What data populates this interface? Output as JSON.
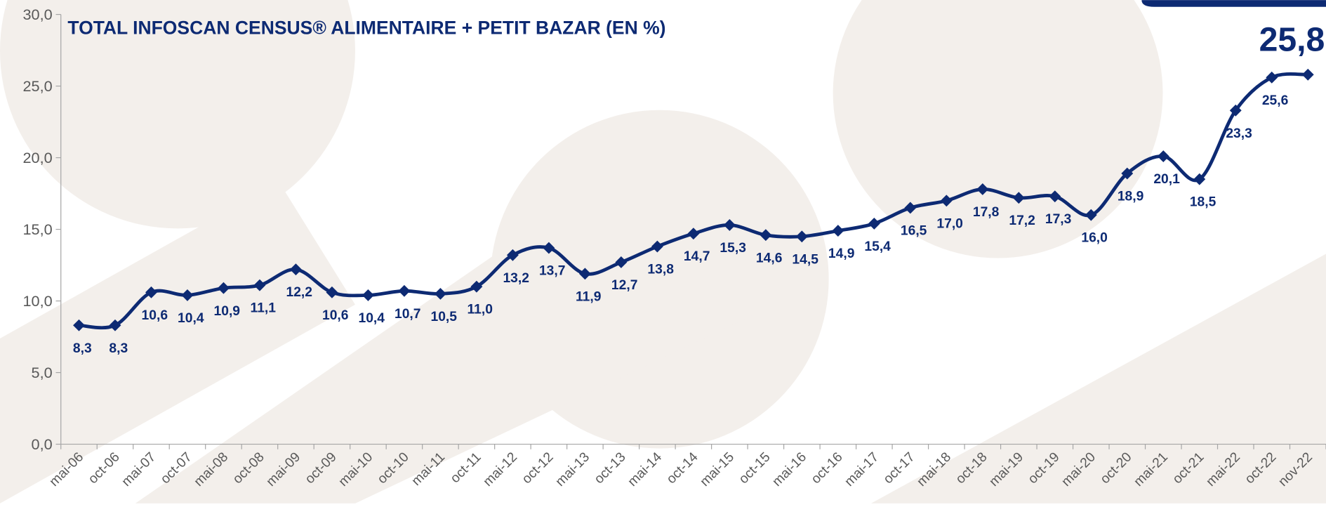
{
  "chart_data": {
    "type": "line",
    "title": "TOTAL INFOSCAN CENSUS® ALIMENTAIRE + PETIT BAZAR (EN %)",
    "categories": [
      "mai-06",
      "oct-06",
      "mai-07",
      "oct-07",
      "mai-08",
      "oct-08",
      "mai-09",
      "oct-09",
      "mai-10",
      "oct-10",
      "mai-11",
      "oct-11",
      "mai-12",
      "oct-12",
      "mai-13",
      "oct-13",
      "mai-14",
      "oct-14",
      "mai-15",
      "oct-15",
      "mai-16",
      "oct-16",
      "mai-17",
      "oct-17",
      "mai-18",
      "oct-18",
      "mai-19",
      "oct-19",
      "mai-20",
      "oct-20",
      "mai-21",
      "oct-21",
      "mai-22",
      "oct-22",
      "nov-22"
    ],
    "values": [
      8.3,
      8.3,
      10.6,
      10.4,
      10.9,
      11.1,
      12.2,
      10.6,
      10.4,
      10.7,
      10.5,
      11.0,
      13.2,
      13.7,
      11.9,
      12.7,
      13.8,
      14.7,
      15.3,
      14.6,
      14.5,
      14.9,
      15.4,
      16.5,
      17.0,
      17.8,
      17.2,
      17.3,
      16.0,
      18.9,
      20.1,
      18.5,
      23.3,
      25.6,
      25.8
    ],
    "value_labels": [
      "8,3",
      "8,3",
      "10,6",
      "10,4",
      "10,9",
      "11,1",
      "12,2",
      "10,6",
      "10,4",
      "10,7",
      "10,5",
      "11,0",
      "13,2",
      "13,7",
      "11,9",
      "12,7",
      "13,8",
      "14,7",
      "15,3",
      "14,6",
      "14,5",
      "14,9",
      "15,4",
      "16,5",
      "17,0",
      "17,8",
      "17,2",
      "17,3",
      "16,0",
      "18,9",
      "20,1",
      "18,5",
      "23,3",
      "25,6",
      "25,8"
    ],
    "color": "#0d2a73",
    "ylim": [
      0,
      30
    ],
    "yticks": [
      {
        "value": 0,
        "label": "0,0"
      },
      {
        "value": 5,
        "label": "5,0"
      },
      {
        "value": 10,
        "label": "10,0"
      },
      {
        "value": 15,
        "label": "15,0"
      },
      {
        "value": 20,
        "label": "20,0"
      },
      {
        "value": 25,
        "label": "25,0"
      },
      {
        "value": 30,
        "label": "30,0"
      }
    ],
    "grid": false
  }
}
